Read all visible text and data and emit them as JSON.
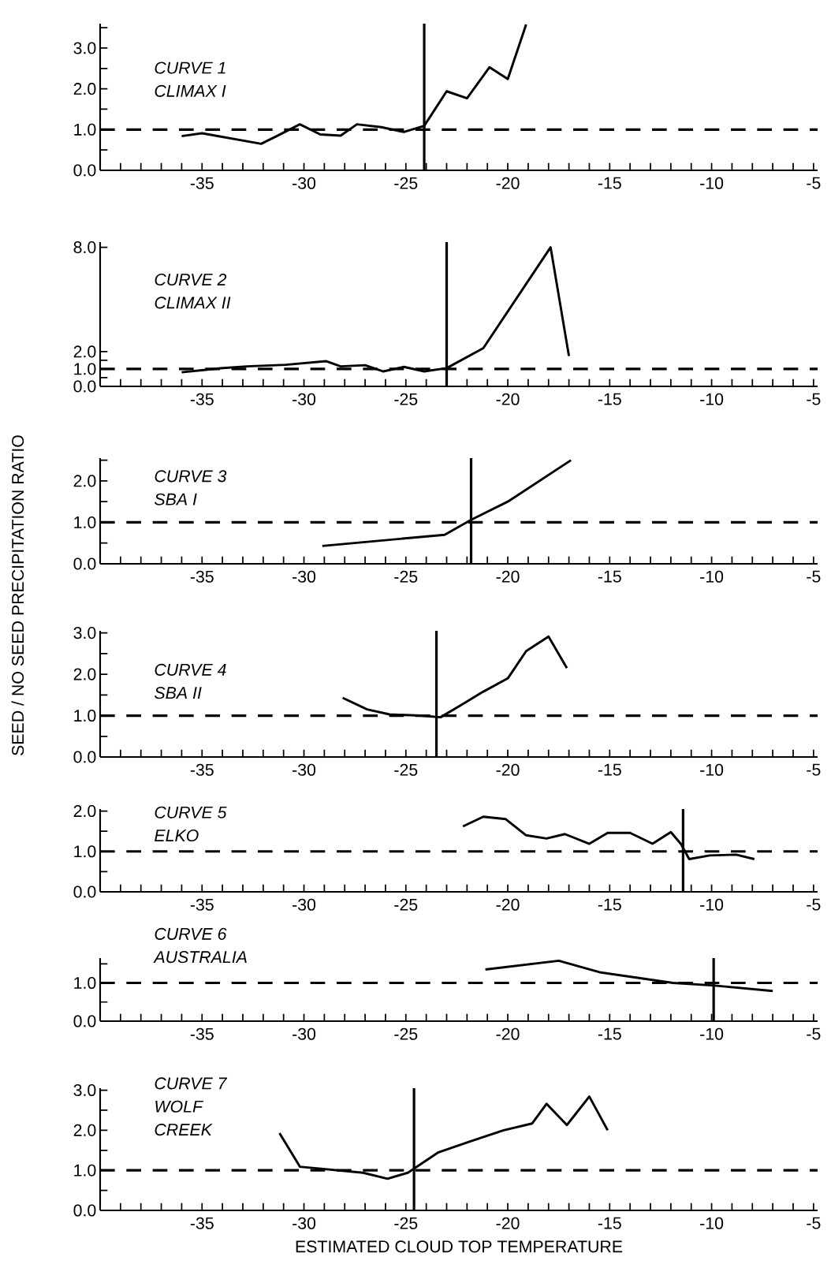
{
  "chart_data": [
    {
      "type": "line",
      "annotations": [
        "CURVE 1",
        "CLIMAX I"
      ],
      "color": "#000000",
      "line_style": "solid",
      "marker": "none",
      "x": [
        -36.0,
        -35.0,
        -32.1,
        -31.3,
        -30.2,
        -29.2,
        -28.2,
        -27.4,
        -26.2,
        -25.1,
        -24.1,
        -23.0,
        -22.0,
        -20.9,
        -20.0,
        -19.1
      ],
      "values": [
        0.84,
        0.91,
        0.65,
        0.85,
        1.13,
        0.88,
        0.85,
        1.13,
        1.06,
        0.94,
        1.09,
        1.94,
        1.77,
        2.53,
        2.24,
        3.58
      ],
      "xlim": [
        -40,
        -4.8
      ],
      "ylim": [
        0,
        3.6
      ],
      "xticks": [
        {
          "value": -39,
          "label": null
        },
        {
          "value": -38,
          "label": null
        },
        {
          "value": -37,
          "label": null
        },
        {
          "value": -36,
          "label": null
        },
        -35,
        {
          "value": -34,
          "label": null
        },
        {
          "value": -33,
          "label": null
        },
        {
          "value": -32,
          "label": null
        },
        {
          "value": -31,
          "label": null
        },
        -30,
        {
          "value": -29,
          "label": null
        },
        {
          "value": -28,
          "label": null
        },
        {
          "value": -27,
          "label": null
        },
        {
          "value": -26,
          "label": null
        },
        -25,
        {
          "value": -24,
          "label": null
        },
        {
          "value": -23,
          "label": null
        },
        {
          "value": -22,
          "label": null
        },
        {
          "value": -21,
          "label": null
        },
        -20,
        {
          "value": -19,
          "label": null
        },
        {
          "value": -18,
          "label": null
        },
        {
          "value": -17,
          "label": null
        },
        {
          "value": -16,
          "label": null
        },
        -15,
        {
          "value": -14,
          "label": null
        },
        {
          "value": -13,
          "label": null
        },
        {
          "value": -12,
          "label": null
        },
        {
          "value": -11,
          "label": null
        },
        -10,
        {
          "value": -9,
          "label": null
        },
        {
          "value": -8,
          "label": null
        },
        {
          "value": -7,
          "label": null
        },
        {
          "value": -6,
          "label": null
        },
        -5
      ],
      "yticks": [
        {
          "value": 0,
          "label": "0.0"
        },
        {
          "value": 0.5,
          "label": null
        },
        {
          "value": 1,
          "label": "1.0"
        },
        {
          "value": 1.5,
          "label": null
        },
        {
          "value": 2,
          "label": "2.0"
        },
        {
          "value": 2.5,
          "label": null
        },
        {
          "value": 3,
          "label": "3.0"
        },
        {
          "value": 3.5,
          "label": null
        }
      ],
      "ref_lines": [
        {
          "axis": "y",
          "value": 1,
          "line_style": "dashed"
        },
        {
          "axis": "x",
          "value": -24.1,
          "line_style": "solid"
        }
      ]
    },
    {
      "type": "line",
      "annotations": [
        "CURVE 2",
        "CLIMAX II"
      ],
      "color": "#000000",
      "line_style": "solid",
      "marker": "none",
      "x": [
        -36.0,
        -34.1,
        -32.8,
        -30.9,
        -28.9,
        -28.2,
        -27.0,
        -26.1,
        -25.1,
        -24.1,
        -23.0,
        -21.2,
        -17.9,
        -17.0
      ],
      "values": [
        0.81,
        1.04,
        1.15,
        1.24,
        1.45,
        1.15,
        1.22,
        0.86,
        1.12,
        0.86,
        1.05,
        2.2,
        8.0,
        1.75
      ],
      "xlim": [
        -40,
        -4.8
      ],
      "ylim": [
        0,
        8.3
      ],
      "xticks": [
        {
          "value": -39,
          "label": null
        },
        {
          "value": -38,
          "label": null
        },
        {
          "value": -37,
          "label": null
        },
        {
          "value": -36,
          "label": null
        },
        -35,
        {
          "value": -34,
          "label": null
        },
        {
          "value": -33,
          "label": null
        },
        {
          "value": -32,
          "label": null
        },
        {
          "value": -31,
          "label": null
        },
        -30,
        {
          "value": -29,
          "label": null
        },
        {
          "value": -28,
          "label": null
        },
        {
          "value": -27,
          "label": null
        },
        {
          "value": -26,
          "label": null
        },
        -25,
        {
          "value": -24,
          "label": null
        },
        {
          "value": -23,
          "label": null
        },
        {
          "value": -22,
          "label": null
        },
        {
          "value": -21,
          "label": null
        },
        -20,
        {
          "value": -19,
          "label": null
        },
        {
          "value": -18,
          "label": null
        },
        {
          "value": -17,
          "label": null
        },
        {
          "value": -16,
          "label": null
        },
        -15,
        {
          "value": -14,
          "label": null
        },
        {
          "value": -13,
          "label": null
        },
        {
          "value": -12,
          "label": null
        },
        {
          "value": -11,
          "label": null
        },
        -10,
        {
          "value": -9,
          "label": null
        },
        {
          "value": -8,
          "label": null
        },
        {
          "value": -7,
          "label": null
        },
        {
          "value": -6,
          "label": null
        },
        -5
      ],
      "yticks": [
        {
          "value": 0,
          "label": "0.0"
        },
        {
          "value": 0.5,
          "label": null
        },
        {
          "value": 1,
          "label": "1.0"
        },
        {
          "value": 1.5,
          "label": null
        },
        {
          "value": 2,
          "label": "2.0"
        },
        {
          "value": 8,
          "label": "8.0"
        }
      ],
      "ref_lines": [
        {
          "axis": "y",
          "value": 1,
          "line_style": "dashed"
        },
        {
          "axis": "x",
          "value": -23.0,
          "line_style": "solid"
        }
      ]
    },
    {
      "type": "line",
      "annotations": [
        "CURVE 3",
        "SBA I"
      ],
      "color": "#000000",
      "line_style": "solid",
      "marker": "none",
      "x": [
        -29.1,
        -23.1,
        -21.8,
        -20.0,
        -16.9
      ],
      "values": [
        0.43,
        0.7,
        1.06,
        1.5,
        2.5
      ],
      "xlim": [
        -40,
        -4.8
      ],
      "ylim": [
        0,
        2.55
      ],
      "xticks": [
        {
          "value": -39,
          "label": null
        },
        {
          "value": -38,
          "label": null
        },
        {
          "value": -37,
          "label": null
        },
        {
          "value": -36,
          "label": null
        },
        -35,
        {
          "value": -34,
          "label": null
        },
        {
          "value": -33,
          "label": null
        },
        {
          "value": -32,
          "label": null
        },
        {
          "value": -31,
          "label": null
        },
        -30,
        {
          "value": -29,
          "label": null
        },
        {
          "value": -28,
          "label": null
        },
        {
          "value": -27,
          "label": null
        },
        {
          "value": -26,
          "label": null
        },
        -25,
        {
          "value": -24,
          "label": null
        },
        {
          "value": -23,
          "label": null
        },
        {
          "value": -22,
          "label": null
        },
        {
          "value": -21,
          "label": null
        },
        -20,
        {
          "value": -19,
          "label": null
        },
        {
          "value": -18,
          "label": null
        },
        {
          "value": -17,
          "label": null
        },
        {
          "value": -16,
          "label": null
        },
        -15,
        {
          "value": -14,
          "label": null
        },
        {
          "value": -13,
          "label": null
        },
        {
          "value": -12,
          "label": null
        },
        {
          "value": -11,
          "label": null
        },
        -10,
        {
          "value": -9,
          "label": null
        },
        {
          "value": -8,
          "label": null
        },
        {
          "value": -7,
          "label": null
        },
        {
          "value": -6,
          "label": null
        },
        -5
      ],
      "yticks": [
        {
          "value": 0,
          "label": "0.0"
        },
        {
          "value": 0.5,
          "label": null
        },
        {
          "value": 1,
          "label": "1.0"
        },
        {
          "value": 1.5,
          "label": null
        },
        {
          "value": 2,
          "label": "2.0"
        },
        {
          "value": 2.5,
          "label": null
        }
      ],
      "ref_lines": [
        {
          "axis": "y",
          "value": 1,
          "line_style": "dashed"
        },
        {
          "axis": "x",
          "value": -21.8,
          "line_style": "solid"
        }
      ]
    },
    {
      "type": "line",
      "annotations": [
        "CURVE 4",
        "SBA II"
      ],
      "ylabel": "SEED / NO SEED PRECIPITATION RATIO",
      "color": "#000000",
      "line_style": "solid",
      "marker": "none",
      "x": [
        -28.1,
        -26.9,
        -25.8,
        -24.3,
        -23.3,
        -22.2,
        -21.2,
        -20.0,
        -19.1,
        -18.0,
        -17.1
      ],
      "values": [
        1.43,
        1.15,
        1.03,
        1.0,
        0.96,
        1.28,
        1.58,
        1.9,
        2.56,
        2.91,
        2.15
      ],
      "xlim": [
        -40,
        -4.8
      ],
      "ylim": [
        0,
        3.05
      ],
      "xticks": [
        {
          "value": -39,
          "label": null
        },
        {
          "value": -38,
          "label": null
        },
        {
          "value": -37,
          "label": null
        },
        {
          "value": -36,
          "label": null
        },
        -35,
        {
          "value": -34,
          "label": null
        },
        {
          "value": -33,
          "label": null
        },
        {
          "value": -32,
          "label": null
        },
        {
          "value": -31,
          "label": null
        },
        -30,
        {
          "value": -29,
          "label": null
        },
        {
          "value": -28,
          "label": null
        },
        {
          "value": -27,
          "label": null
        },
        {
          "value": -26,
          "label": null
        },
        -25,
        {
          "value": -24,
          "label": null
        },
        {
          "value": -23,
          "label": null
        },
        {
          "value": -22,
          "label": null
        },
        {
          "value": -21,
          "label": null
        },
        -20,
        {
          "value": -19,
          "label": null
        },
        {
          "value": -18,
          "label": null
        },
        {
          "value": -17,
          "label": null
        },
        {
          "value": -16,
          "label": null
        },
        -15,
        {
          "value": -14,
          "label": null
        },
        {
          "value": -13,
          "label": null
        },
        {
          "value": -12,
          "label": null
        },
        {
          "value": -11,
          "label": null
        },
        -10,
        {
          "value": -9,
          "label": null
        },
        {
          "value": -8,
          "label": null
        },
        {
          "value": -7,
          "label": null
        },
        {
          "value": -6,
          "label": null
        },
        -5
      ],
      "yticks": [
        {
          "value": 0,
          "label": "0.0"
        },
        {
          "value": 0.5,
          "label": null
        },
        {
          "value": 1,
          "label": "1.0"
        },
        {
          "value": 1.5,
          "label": null
        },
        {
          "value": 2,
          "label": "2.0"
        },
        {
          "value": 2.5,
          "label": null
        },
        {
          "value": 3,
          "label": "3.0"
        }
      ],
      "ref_lines": [
        {
          "axis": "y",
          "value": 1,
          "line_style": "dashed"
        },
        {
          "axis": "x",
          "value": -23.5,
          "line_style": "solid"
        }
      ]
    },
    {
      "type": "line",
      "annotations": [
        "CURVE 5",
        "ELKO"
      ],
      "color": "#000000",
      "line_style": "solid",
      "marker": "none",
      "x": [
        -22.2,
        -21.2,
        -20.1,
        -19.1,
        -18.1,
        -17.2,
        -16.0,
        -15.1,
        -14.0,
        -12.9,
        -12.0,
        -11.5,
        -11.1,
        -10.1,
        -8.8,
        -7.9
      ],
      "values": [
        1.62,
        1.86,
        1.8,
        1.4,
        1.32,
        1.43,
        1.19,
        1.46,
        1.46,
        1.19,
        1.48,
        1.18,
        0.81,
        0.9,
        0.92,
        0.81
      ],
      "xlim": [
        -40,
        -4.8
      ],
      "ylim": [
        0,
        2.05
      ],
      "xticks": [
        {
          "value": -39,
          "label": null
        },
        {
          "value": -38,
          "label": null
        },
        {
          "value": -37,
          "label": null
        },
        {
          "value": -36,
          "label": null
        },
        -35,
        {
          "value": -34,
          "label": null
        },
        {
          "value": -33,
          "label": null
        },
        {
          "value": -32,
          "label": null
        },
        {
          "value": -31,
          "label": null
        },
        -30,
        {
          "value": -29,
          "label": null
        },
        {
          "value": -28,
          "label": null
        },
        {
          "value": -27,
          "label": null
        },
        {
          "value": -26,
          "label": null
        },
        -25,
        {
          "value": -24,
          "label": null
        },
        {
          "value": -23,
          "label": null
        },
        {
          "value": -22,
          "label": null
        },
        {
          "value": -21,
          "label": null
        },
        -20,
        {
          "value": -19,
          "label": null
        },
        {
          "value": -18,
          "label": null
        },
        {
          "value": -17,
          "label": null
        },
        {
          "value": -16,
          "label": null
        },
        -15,
        {
          "value": -14,
          "label": null
        },
        {
          "value": -13,
          "label": null
        },
        {
          "value": -12,
          "label": null
        },
        {
          "value": -11,
          "label": null
        },
        -10,
        {
          "value": -9,
          "label": null
        },
        {
          "value": -8,
          "label": null
        },
        {
          "value": -7,
          "label": null
        },
        {
          "value": -6,
          "label": null
        },
        -5
      ],
      "yticks": [
        {
          "value": 0,
          "label": "0.0"
        },
        {
          "value": 0.5,
          "label": null
        },
        {
          "value": 1,
          "label": "1.0"
        },
        {
          "value": 1.5,
          "label": null
        },
        {
          "value": 2,
          "label": "2.0"
        }
      ],
      "ref_lines": [
        {
          "axis": "y",
          "value": 1,
          "line_style": "dashed"
        },
        {
          "axis": "x",
          "value": -11.4,
          "line_style": "solid"
        }
      ]
    },
    {
      "type": "line",
      "annotations": [
        "CURVE 6",
        "AUSTRALIA"
      ],
      "color": "#000000",
      "line_style": "solid",
      "marker": "none",
      "x": [
        -21.1,
        -17.5,
        -15.5,
        -11.9,
        -9.85,
        -7.0
      ],
      "values": [
        1.35,
        1.58,
        1.28,
        1.0,
        0.93,
        0.79
      ],
      "xlim": [
        -40,
        -4.8
      ],
      "ylim": [
        0,
        1.65
      ],
      "xticks": [
        {
          "value": -39,
          "label": null
        },
        {
          "value": -38,
          "label": null
        },
        {
          "value": -37,
          "label": null
        },
        {
          "value": -36,
          "label": null
        },
        -35,
        {
          "value": -34,
          "label": null
        },
        {
          "value": -33,
          "label": null
        },
        {
          "value": -32,
          "label": null
        },
        {
          "value": -31,
          "label": null
        },
        -30,
        {
          "value": -29,
          "label": null
        },
        {
          "value": -28,
          "label": null
        },
        {
          "value": -27,
          "label": null
        },
        {
          "value": -26,
          "label": null
        },
        -25,
        {
          "value": -24,
          "label": null
        },
        {
          "value": -23,
          "label": null
        },
        {
          "value": -22,
          "label": null
        },
        {
          "value": -21,
          "label": null
        },
        -20,
        {
          "value": -19,
          "label": null
        },
        {
          "value": -18,
          "label": null
        },
        {
          "value": -17,
          "label": null
        },
        {
          "value": -16,
          "label": null
        },
        -15,
        {
          "value": -14,
          "label": null
        },
        {
          "value": -13,
          "label": null
        },
        {
          "value": -12,
          "label": null
        },
        {
          "value": -11,
          "label": null
        },
        -10,
        {
          "value": -9,
          "label": null
        },
        {
          "value": -8,
          "label": null
        },
        {
          "value": -7,
          "label": null
        },
        {
          "value": -6,
          "label": null
        },
        -5
      ],
      "yticks": [
        {
          "value": 0,
          "label": "0.0"
        },
        {
          "value": 0.5,
          "label": null
        },
        {
          "value": 1,
          "label": "1.0"
        },
        {
          "value": 1.5,
          "label": null
        }
      ],
      "ref_lines": [
        {
          "axis": "y",
          "value": 1,
          "line_style": "dashed"
        },
        {
          "axis": "x",
          "value": -9.9,
          "line_style": "solid"
        }
      ]
    },
    {
      "type": "line",
      "annotations": [
        "CURVE 7",
        "WOLF",
        "CREEK"
      ],
      "xlabel": "ESTIMATED CLOUD TOP TEMPERATURE",
      "color": "#000000",
      "line_style": "solid",
      "marker": "none",
      "x": [
        -31.2,
        -30.2,
        -27.1,
        -25.9,
        -24.9,
        -23.4,
        -21.8,
        -20.2,
        -18.8,
        -18.1,
        -17.1,
        -16.0,
        -15.1
      ],
      "values": [
        1.93,
        1.09,
        0.94,
        0.79,
        0.94,
        1.45,
        1.73,
        2.0,
        2.17,
        2.66,
        2.13,
        2.84,
        2.0
      ],
      "xlim": [
        -40,
        -4.8
      ],
      "ylim": [
        0,
        3.05
      ],
      "xticks": [
        {
          "value": -39,
          "label": null
        },
        {
          "value": -38,
          "label": null
        },
        {
          "value": -37,
          "label": null
        },
        {
          "value": -36,
          "label": null
        },
        -35,
        {
          "value": -34,
          "label": null
        },
        {
          "value": -33,
          "label": null
        },
        {
          "value": -32,
          "label": null
        },
        {
          "value": -31,
          "label": null
        },
        -30,
        {
          "value": -29,
          "label": null
        },
        {
          "value": -28,
          "label": null
        },
        {
          "value": -27,
          "label": null
        },
        {
          "value": -26,
          "label": null
        },
        -25,
        {
          "value": -24,
          "label": null
        },
        {
          "value": -23,
          "label": null
        },
        {
          "value": -22,
          "label": null
        },
        {
          "value": -21,
          "label": null
        },
        -20,
        {
          "value": -19,
          "label": null
        },
        {
          "value": -18,
          "label": null
        },
        {
          "value": -17,
          "label": null
        },
        {
          "value": -16,
          "label": null
        },
        -15,
        {
          "value": -14,
          "label": null
        },
        {
          "value": -13,
          "label": null
        },
        {
          "value": -12,
          "label": null
        },
        {
          "value": -11,
          "label": null
        },
        -10,
        {
          "value": -9,
          "label": null
        },
        {
          "value": -8,
          "label": null
        },
        {
          "value": -7,
          "label": null
        },
        {
          "value": -6,
          "label": null
        },
        -5
      ],
      "yticks": [
        {
          "value": 0,
          "label": "0.0"
        },
        {
          "value": 0.5,
          "label": null
        },
        {
          "value": 1,
          "label": "1.0"
        },
        {
          "value": 1.5,
          "label": null
        },
        {
          "value": 2,
          "label": "2.0"
        },
        {
          "value": 2.5,
          "label": null
        },
        {
          "value": 3,
          "label": "3.0"
        }
      ],
      "ref_lines": [
        {
          "axis": "y",
          "value": 1,
          "line_style": "dashed"
        },
        {
          "axis": "x",
          "value": -24.6,
          "line_style": "solid"
        }
      ]
    }
  ]
}
